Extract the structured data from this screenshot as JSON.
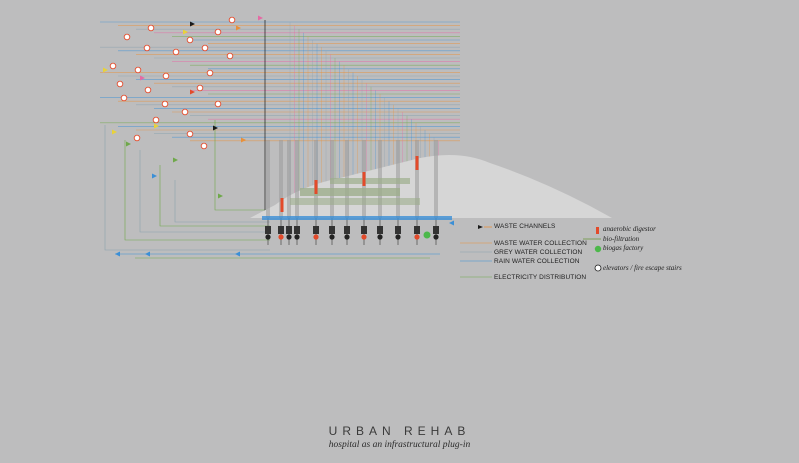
{
  "legend": {
    "waste_channels": "WASTE CHANNELS",
    "waste_water": "WASTE WATER COLLECTION",
    "grey_water": "GREY WATER COLLECTION",
    "rain_water": "RAIN WATER COLLECTION",
    "electricity": "ELECTRICITY DISTRIBUTION",
    "anaerobic": "anaerobic digestor",
    "biofiltration": "bio-filtration",
    "biogas": "biogas factory",
    "elevators": "elevators / fire escape stairs"
  },
  "title": "URBAN REHAB",
  "subtitle": "hospital as an infrastructural plug-in",
  "colors": {
    "background": "#bdbdbe",
    "building": "#d6d6d6",
    "waste": "#e8903a",
    "grey": "#8aa2ad",
    "rain": "#3b8fd6",
    "electric": "#6fa84a",
    "digestor": "#e34a2a",
    "biogas": "#4cb84a",
    "biofilter": "#9dae8c",
    "pink": "#e56aa4",
    "yellow": "#e8d23a",
    "black": "#1a1a1a"
  }
}
